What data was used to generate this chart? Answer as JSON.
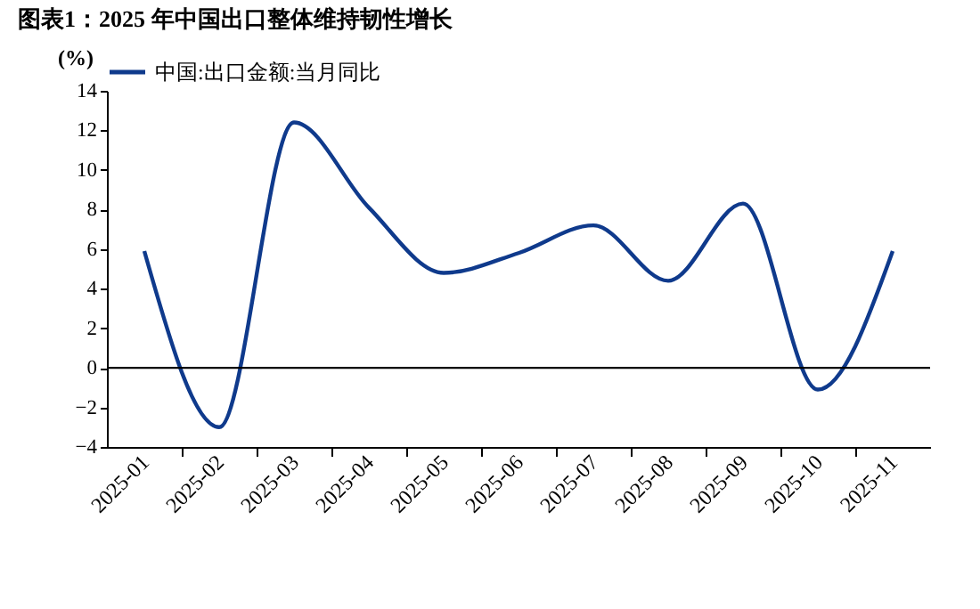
{
  "chart_data": {
    "type": "line",
    "title": "图表1：2025 年中国出口整体维持韧性增长",
    "ylabel": "(%)",
    "categories": [
      "2025-01",
      "2025-02",
      "2025-03",
      "2025-04",
      "2025-05",
      "2025-06",
      "2025-07",
      "2025-08",
      "2025-09",
      "2025-10",
      "2025-11"
    ],
    "series": [
      {
        "name": "中国:出口金额:当月同比",
        "color": "#0f3a8c",
        "values": [
          5.9,
          -3.0,
          12.4,
          8.1,
          4.8,
          5.8,
          7.2,
          4.4,
          8.3,
          -1.1,
          5.9
        ]
      }
    ],
    "ylim": [
      -4,
      14
    ],
    "yticks": [
      -4,
      -2,
      0,
      2,
      4,
      6,
      8,
      10,
      12,
      14
    ],
    "ref_lines": [
      {
        "axis": "y",
        "value": 0,
        "color": "#000000"
      }
    ],
    "grid": false,
    "legend": "top",
    "marker": "none",
    "line_style": "solid"
  }
}
